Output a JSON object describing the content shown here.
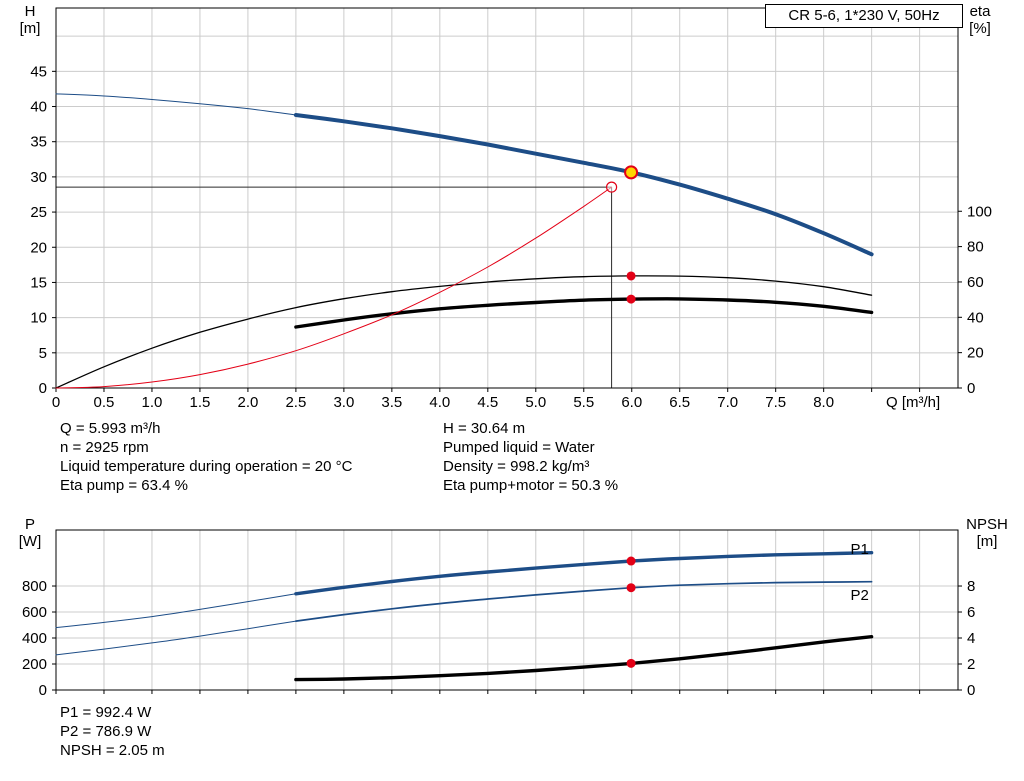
{
  "title_box": {
    "label": "CR 5-6, 1*230 V, 50Hz"
  },
  "axis_headers": {
    "top_left": [
      "H",
      "[m]"
    ],
    "top_right": [
      "eta",
      "[%]"
    ],
    "x": "Q [m³/h]",
    "bottom_left": [
      "P",
      "[W]"
    ],
    "bottom_right": [
      "NPSH",
      "[m]"
    ]
  },
  "info_top_left": [
    "Q = 5.993 m³/h",
    "n = 2925 rpm",
    "Liquid temperature during operation = 20 °C",
    "Eta pump = 63.4 %"
  ],
  "info_top_right": [
    "H = 30.64 m",
    "Pumped liquid = Water",
    "Density = 998.2 kg/m³",
    "Eta pump+motor = 50.3 %"
  ],
  "info_bottom": [
    "P1 = 992.4 W",
    "P2 = 786.9 W",
    "NPSH = 2.05 m"
  ],
  "colors": {
    "blue": "#1d4d87",
    "black": "#000000",
    "red": "#e30016",
    "duty_yellow": "#ffd400",
    "grid": "#cccccc",
    "crosshair": "#2a2a2a",
    "label_blue": "#1d4d87"
  },
  "chart_data": [
    {
      "type": "line",
      "title": "CR 5-6, 1*230 V, 50Hz",
      "xlabel": "Q [m³/h]",
      "y_left_label": "H [m]",
      "y_right_label": "eta [%]",
      "x_range": [
        0,
        9.4
      ],
      "y_left_range": [
        0,
        54
      ],
      "y_right_range": [
        0,
        215
      ],
      "x_ticks": [
        [
          0,
          "0"
        ],
        [
          0.5,
          "0.5"
        ],
        [
          1,
          "1.0"
        ],
        [
          1.5,
          "1.5"
        ],
        [
          2,
          "2.0"
        ],
        [
          2.5,
          "2.5"
        ],
        [
          3,
          "3.0"
        ],
        [
          3.5,
          "3.5"
        ],
        [
          4,
          "4.0"
        ],
        [
          4.5,
          "4.5"
        ],
        [
          5,
          "5.0"
        ],
        [
          5.5,
          "5.5"
        ],
        [
          6,
          "6.0"
        ],
        [
          6.5,
          "6.5"
        ],
        [
          7,
          "7.0"
        ],
        [
          7.5,
          "7.5"
        ],
        [
          8,
          "8.0"
        ],
        [
          8.5,
          null
        ],
        [
          9,
          null
        ]
      ],
      "y_left_ticks": [
        [
          0,
          "0"
        ],
        [
          5,
          "5"
        ],
        [
          10,
          "10"
        ],
        [
          15,
          "15"
        ],
        [
          20,
          "20"
        ],
        [
          25,
          "25"
        ],
        [
          30,
          "30"
        ],
        [
          35,
          "35"
        ],
        [
          40,
          "40"
        ],
        [
          45,
          "45"
        ],
        [
          50,
          null
        ]
      ],
      "y_right_ticks": [
        [
          0,
          "0"
        ],
        [
          20,
          "20"
        ],
        [
          40,
          "40"
        ],
        [
          60,
          "60"
        ],
        [
          80,
          "80"
        ],
        [
          100,
          "100"
        ]
      ],
      "crosshair": {
        "q": 5.79,
        "v": 28.55
      },
      "series": [
        {
          "name": "head-out-of-range",
          "axis": "left",
          "color": "blue",
          "width": 1,
          "points": [
            [
              0,
              41.8
            ],
            [
              0.5,
              41.5
            ],
            [
              1,
              41.0
            ],
            [
              1.5,
              40.4
            ],
            [
              2,
              39.7
            ],
            [
              2.5,
              38.8
            ]
          ]
        },
        {
          "name": "head-main",
          "axis": "left",
          "color": "blue",
          "width": 4,
          "points": [
            [
              2.5,
              38.8
            ],
            [
              3,
              37.9
            ],
            [
              3.5,
              36.9
            ],
            [
              4,
              35.8
            ],
            [
              4.5,
              34.6
            ],
            [
              5,
              33.3
            ],
            [
              5.5,
              32.0
            ],
            [
              6,
              30.64
            ],
            [
              6.5,
              28.9
            ],
            [
              7,
              26.9
            ],
            [
              7.5,
              24.7
            ],
            [
              8,
              22.0
            ],
            [
              8.5,
              19.0
            ]
          ]
        },
        {
          "name": "eta-pump",
          "axis": "right",
          "color": "black",
          "width": 1.3,
          "points": [
            [
              0,
              0
            ],
            [
              0.5,
              12
            ],
            [
              1,
              22.5
            ],
            [
              1.5,
              31.5
            ],
            [
              2,
              39
            ],
            [
              2.5,
              45.5
            ],
            [
              3,
              50.5
            ],
            [
              3.5,
              54.5
            ],
            [
              4,
              57.5
            ],
            [
              4.5,
              60
            ],
            [
              5,
              61.8
            ],
            [
              5.5,
              63
            ],
            [
              6,
              63.4
            ],
            [
              6.5,
              63.3
            ],
            [
              7,
              62.4
            ],
            [
              7.5,
              60.5
            ],
            [
              8,
              57.3
            ],
            [
              8.5,
              52.5
            ]
          ]
        },
        {
          "name": "eta-pump-motor",
          "axis": "right",
          "color": "black",
          "width": 3.4,
          "points": [
            [
              2.5,
              34.5
            ],
            [
              3,
              38.5
            ],
            [
              3.5,
              42
            ],
            [
              4,
              44.8
            ],
            [
              4.5,
              46.8
            ],
            [
              5,
              48.4
            ],
            [
              5.5,
              49.7
            ],
            [
              6,
              50.3
            ],
            [
              6.5,
              50.4
            ],
            [
              7,
              49.8
            ],
            [
              7.5,
              48.5
            ],
            [
              8,
              46.2
            ],
            [
              8.5,
              42.8
            ]
          ]
        },
        {
          "name": "system-curve",
          "axis": "left",
          "color": "red",
          "width": 1,
          "points": [
            [
              0,
              0
            ],
            [
              0.5,
              0.2
            ],
            [
              1,
              0.85
            ],
            [
              1.5,
              1.9
            ],
            [
              2,
              3.4
            ],
            [
              2.5,
              5.3
            ],
            [
              3,
              7.7
            ],
            [
              3.5,
              10.4
            ],
            [
              4,
              13.6
            ],
            [
              4.5,
              17.2
            ],
            [
              5,
              21.3
            ],
            [
              5.5,
              25.8
            ],
            [
              5.79,
              28.55
            ]
          ]
        }
      ],
      "markers": [
        {
          "kind": "open",
          "q": 5.79,
          "v": 28.55,
          "axis": "left"
        },
        {
          "kind": "duty",
          "q": 5.993,
          "v": 30.64,
          "axis": "left"
        },
        {
          "kind": "dot",
          "q": 5.993,
          "v": 63.4,
          "axis": "right"
        },
        {
          "kind": "dot",
          "q": 5.993,
          "v": 50.3,
          "axis": "right"
        }
      ],
      "labels": []
    },
    {
      "type": "line",
      "title": "Power and NPSH",
      "xlabel": "Q [m³/h]",
      "y_left_label": "P [W]",
      "y_right_label": "NPSH [m]",
      "x_range": [
        0,
        9.4
      ],
      "y_left_range": [
        0,
        1231
      ],
      "y_right_range": [
        0,
        12.31
      ],
      "x_ticks": [
        [
          0,
          null
        ],
        [
          0.5,
          null
        ],
        [
          1,
          null
        ],
        [
          1.5,
          null
        ],
        [
          2,
          null
        ],
        [
          2.5,
          null
        ],
        [
          3,
          null
        ],
        [
          3.5,
          null
        ],
        [
          4,
          null
        ],
        [
          4.5,
          null
        ],
        [
          5,
          null
        ],
        [
          5.5,
          null
        ],
        [
          6,
          null
        ],
        [
          6.5,
          null
        ],
        [
          7,
          null
        ],
        [
          7.5,
          null
        ],
        [
          8,
          null
        ],
        [
          8.5,
          null
        ],
        [
          9,
          null
        ]
      ],
      "y_left_ticks": [
        [
          0,
          "0"
        ],
        [
          200,
          "200"
        ],
        [
          400,
          "400"
        ],
        [
          600,
          "600"
        ],
        [
          800,
          "800"
        ]
      ],
      "y_right_ticks": [
        [
          0,
          "0"
        ],
        [
          2,
          "2"
        ],
        [
          4,
          "4"
        ],
        [
          6,
          "6"
        ],
        [
          8,
          "8"
        ]
      ],
      "crosshair": null,
      "series": [
        {
          "name": "p1-out-of-range",
          "axis": "left",
          "color": "blue",
          "width": 1,
          "points": [
            [
              0,
              480
            ],
            [
              0.5,
              520
            ],
            [
              1,
              565
            ],
            [
              1.5,
              620
            ],
            [
              2,
              680
            ],
            [
              2.5,
              740
            ]
          ]
        },
        {
          "name": "p1-main",
          "axis": "left",
          "color": "blue",
          "width": 3.4,
          "points": [
            [
              2.5,
              740
            ],
            [
              3,
              790
            ],
            [
              3.5,
              835
            ],
            [
              4,
              875
            ],
            [
              4.5,
              908
            ],
            [
              5,
              938
            ],
            [
              5.5,
              966
            ],
            [
              6,
              992.4
            ],
            [
              6.5,
              1012
            ],
            [
              7,
              1028
            ],
            [
              7.5,
              1040
            ],
            [
              8,
              1048
            ],
            [
              8.5,
              1056
            ]
          ]
        },
        {
          "name": "p2-out-of-range",
          "axis": "left",
          "color": "blue",
          "width": 1,
          "points": [
            [
              0,
              270
            ],
            [
              0.5,
              315
            ],
            [
              1,
              362
            ],
            [
              1.5,
              415
            ],
            [
              2,
              472
            ],
            [
              2.5,
              530
            ]
          ]
        },
        {
          "name": "p2-main",
          "axis": "left",
          "color": "blue",
          "width": 1.7,
          "points": [
            [
              2.5,
              530
            ],
            [
              3,
              580
            ],
            [
              3.5,
              625
            ],
            [
              4,
              665
            ],
            [
              4.5,
              700
            ],
            [
              5,
              732
            ],
            [
              5.5,
              761
            ],
            [
              6,
              786.9
            ],
            [
              6.5,
              806
            ],
            [
              7,
              818
            ],
            [
              7.5,
              826
            ],
            [
              8,
              830
            ],
            [
              8.5,
              833
            ]
          ]
        },
        {
          "name": "npsh",
          "axis": "right",
          "color": "black",
          "width": 3.4,
          "points": [
            [
              2.5,
              0.8
            ],
            [
              3,
              0.85
            ],
            [
              3.5,
              0.95
            ],
            [
              4,
              1.1
            ],
            [
              4.5,
              1.28
            ],
            [
              5,
              1.5
            ],
            [
              5.5,
              1.76
            ],
            [
              6,
              2.05
            ],
            [
              6.5,
              2.4
            ],
            [
              7,
              2.8
            ],
            [
              7.5,
              3.25
            ],
            [
              8,
              3.7
            ],
            [
              8.5,
              4.1
            ]
          ]
        }
      ],
      "markers": [
        {
          "kind": "dot",
          "q": 5.993,
          "v": 992.4,
          "axis": "left"
        },
        {
          "kind": "dot",
          "q": 5.993,
          "v": 786.9,
          "axis": "left"
        },
        {
          "kind": "dot",
          "q": 5.993,
          "v": 2.05,
          "axis": "right"
        }
      ],
      "labels": [
        {
          "text": "P1",
          "q": 8.28,
          "v": 1084,
          "axis": "left"
        },
        {
          "text": "P2",
          "q": 8.28,
          "v": 731,
          "axis": "left"
        }
      ]
    }
  ]
}
